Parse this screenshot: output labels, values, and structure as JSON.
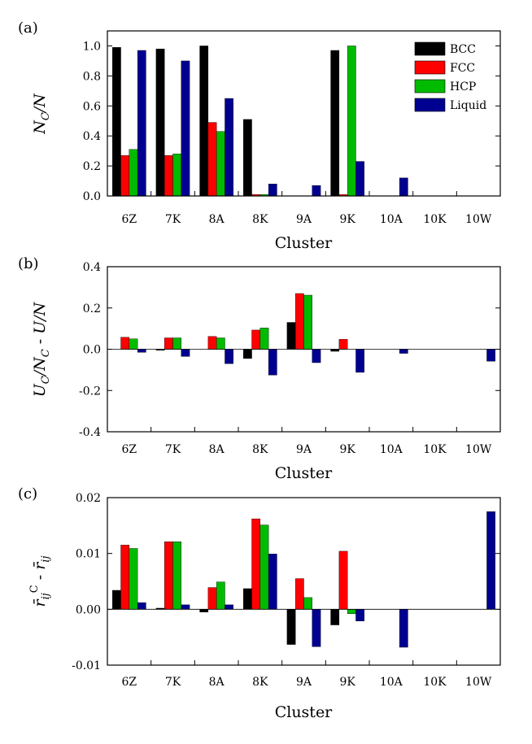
{
  "colors": {
    "BCC": "#000000",
    "FCC": "#ff0000",
    "HCP": "#00bb00",
    "Liquid": "#000090"
  },
  "chart_data": [
    {
      "type": "bar",
      "panel_label": "(a)",
      "xlabel": "Cluster",
      "ylabel": "N_C/N",
      "ylim": [
        0.0,
        1.1
      ],
      "yticks": [
        "0.0",
        "0.2",
        "0.4",
        "0.6",
        "0.8",
        "1.0"
      ],
      "legend_placement": "top-right",
      "categories": [
        "6Z",
        "7K",
        "8A",
        "8K",
        "9A",
        "9K",
        "10A",
        "10K",
        "10W"
      ],
      "series": [
        {
          "name": "BCC",
          "values": [
            0.99,
            0.98,
            1.0,
            0.51,
            0.0,
            0.97,
            0.0,
            0.0,
            0.0
          ]
        },
        {
          "name": "FCC",
          "values": [
            0.27,
            0.27,
            0.49,
            0.01,
            0.0,
            0.01,
            0.0,
            0.0,
            0.0
          ]
        },
        {
          "name": "HCP",
          "values": [
            0.31,
            0.28,
            0.43,
            0.01,
            0.0,
            1.0,
            0.0,
            0.0,
            0.0
          ]
        },
        {
          "name": "Liquid",
          "values": [
            0.97,
            0.9,
            0.65,
            0.08,
            0.07,
            0.23,
            0.12,
            0.0,
            0.0
          ]
        }
      ]
    },
    {
      "type": "bar",
      "panel_label": "(b)",
      "xlabel": "Cluster",
      "ylabel": "U_C/N_C - U/N",
      "ylim": [
        -0.4,
        0.4
      ],
      "yticks": [
        "-0.4",
        "-0.2",
        "0.0",
        "0.2",
        "0.4"
      ],
      "categories": [
        "6Z",
        "7K",
        "8A",
        "8K",
        "9A",
        "9K",
        "10A",
        "10K",
        "10W"
      ],
      "series": [
        {
          "name": "BCC",
          "values": [
            0.0,
            -0.005,
            0.0,
            -0.045,
            0.13,
            -0.01,
            0.0,
            0.0,
            0.0
          ]
        },
        {
          "name": "FCC",
          "values": [
            0.058,
            0.055,
            0.062,
            0.093,
            0.27,
            0.048,
            0.0,
            0.0,
            0.0
          ]
        },
        {
          "name": "HCP",
          "values": [
            0.05,
            0.055,
            0.055,
            0.103,
            0.262,
            0.0,
            0.0,
            0.0,
            0.0
          ]
        },
        {
          "name": "Liquid",
          "values": [
            -0.015,
            -0.035,
            -0.07,
            -0.125,
            -0.065,
            -0.112,
            -0.02,
            0.0,
            -0.058
          ]
        }
      ]
    },
    {
      "type": "bar",
      "panel_label": "(c)",
      "xlabel": "Cluster",
      "ylabel": "r̄_ij^C - r̄_ij",
      "ylim": [
        -0.01,
        0.02
      ],
      "yticks": [
        "-0.01",
        "0.00",
        "0.01",
        "0.02"
      ],
      "categories": [
        "6Z",
        "7K",
        "8A",
        "8K",
        "9A",
        "9K",
        "10A",
        "10K",
        "10W"
      ],
      "series": [
        {
          "name": "BCC",
          "values": [
            0.0034,
            0.0002,
            -0.0005,
            0.0037,
            -0.0063,
            -0.0028,
            0.0,
            0.0,
            0.0
          ]
        },
        {
          "name": "FCC",
          "values": [
            0.0115,
            0.0121,
            0.0039,
            0.0162,
            0.0055,
            0.0104,
            0.0,
            0.0,
            0.0
          ]
        },
        {
          "name": "HCP",
          "values": [
            0.0109,
            0.0121,
            0.0049,
            0.0151,
            0.0021,
            -0.0008,
            0.0,
            0.0,
            0.0
          ]
        },
        {
          "name": "Liquid",
          "values": [
            0.0012,
            0.0008,
            0.0008,
            0.0099,
            -0.0067,
            -0.0021,
            -0.0068,
            0.0,
            0.0175
          ]
        }
      ]
    }
  ]
}
